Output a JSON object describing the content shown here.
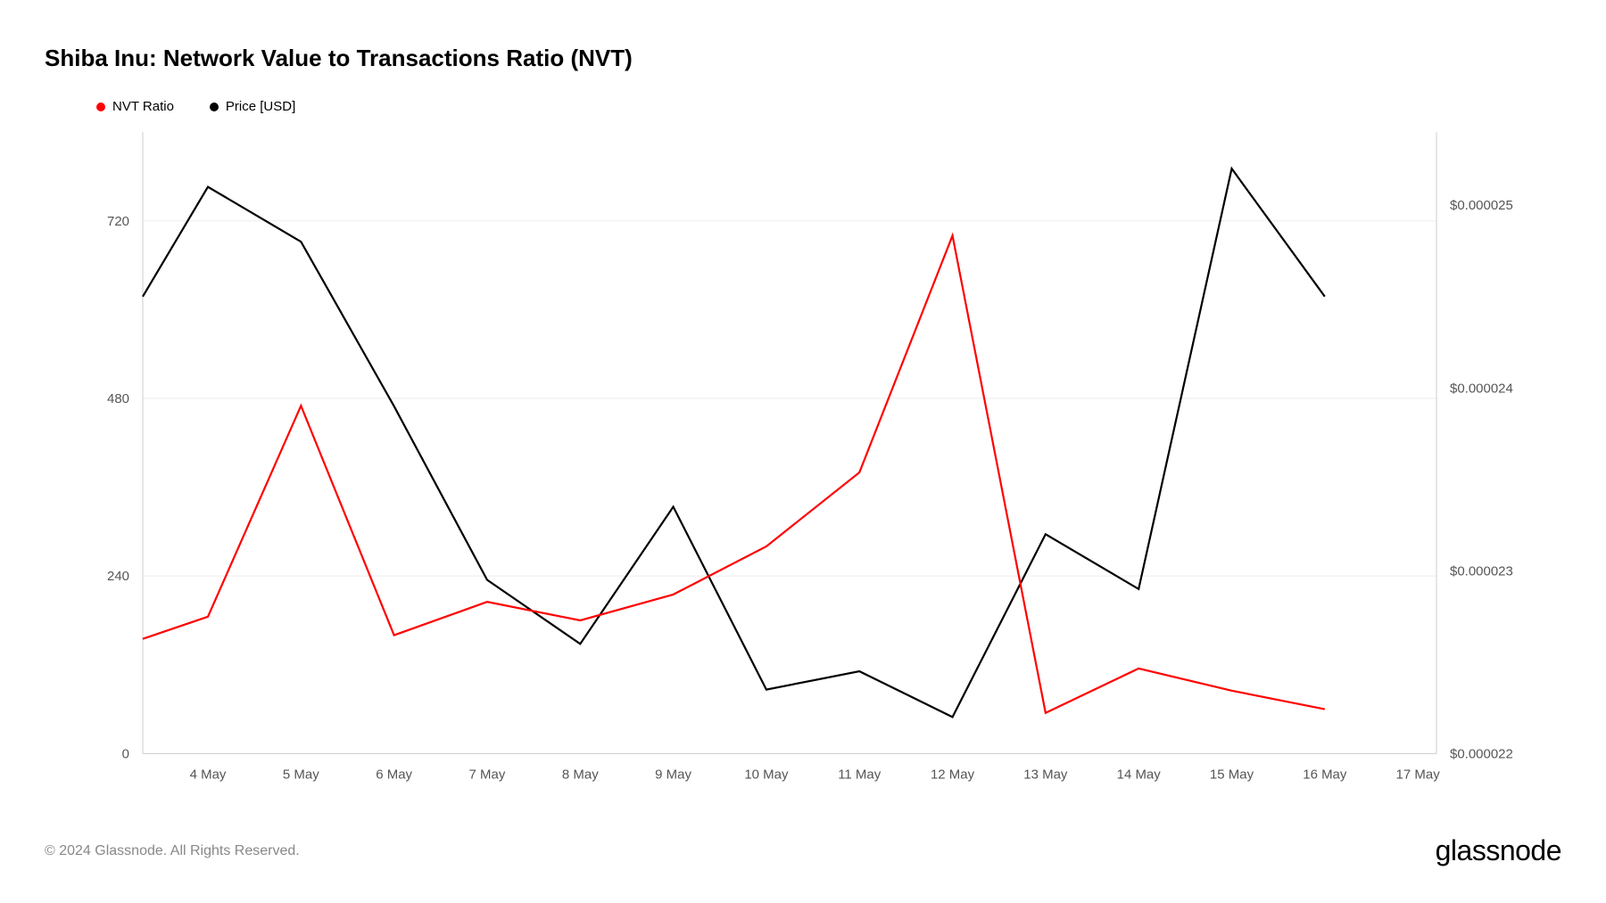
{
  "title": "Shiba Inu: Network Value to Transactions Ratio (NVT)",
  "copyright": "© 2024 Glassnode. All Rights Reserved.",
  "brand": "glassnode",
  "legend": {
    "nvt": {
      "label": "NVT Ratio",
      "color": "#ff0000"
    },
    "price": {
      "label": "Price [USD]",
      "color": "#000000"
    }
  },
  "chart": {
    "type": "line",
    "background_color": "#ffffff",
    "grid_color": "#eeeeee",
    "axis_color": "#cccccc",
    "text_color": "#555555",
    "line_width": 2.2,
    "x": {
      "categories": [
        "4 May",
        "5 May",
        "6 May",
        "7 May",
        "8 May",
        "9 May",
        "10 May",
        "11 May",
        "12 May",
        "13 May",
        "14 May",
        "15 May",
        "16 May",
        "17 May"
      ],
      "domain_min": 3.3,
      "domain_max": 17.2
    },
    "y_left": {
      "min": 0,
      "max": 840,
      "ticks": [
        0,
        240,
        480,
        720
      ]
    },
    "y_right": {
      "min": 2.2e-05,
      "max": 2.54e-05,
      "ticks": [
        2.2e-05,
        2.3e-05,
        2.4e-05,
        2.5e-05
      ],
      "tick_labels": [
        "$0.000022",
        "$0.000023",
        "$0.000024",
        "$0.000025"
      ]
    },
    "series": {
      "nvt": {
        "color": "#ff0000",
        "axis": "left",
        "x": [
          3.3,
          4,
          5,
          6,
          7,
          8,
          9,
          10,
          11,
          12,
          13,
          14,
          15,
          16
        ],
        "y": [
          155,
          185,
          470,
          160,
          205,
          180,
          215,
          280,
          380,
          700,
          55,
          115,
          85,
          60
        ]
      },
      "price": {
        "color": "#000000",
        "axis": "right",
        "x": [
          3.3,
          4,
          5,
          6,
          7,
          8,
          9,
          10,
          11,
          12,
          13,
          14,
          15,
          16
        ],
        "y": [
          2.45e-05,
          2.51e-05,
          2.48e-05,
          2.39e-05,
          2.295e-05,
          2.26e-05,
          2.335e-05,
          2.235e-05,
          2.245e-05,
          2.22e-05,
          2.32e-05,
          2.29e-05,
          2.52e-05,
          2.45e-05
        ]
      }
    }
  }
}
